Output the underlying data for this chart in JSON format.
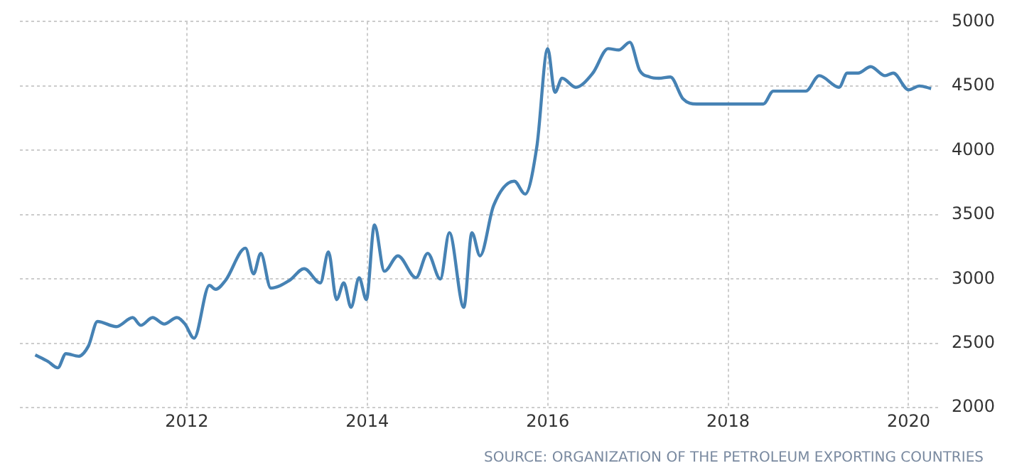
{
  "chart_data": {
    "type": "line",
    "annotations": [
      "SOURCE: ORGANIZATION OF THE PETROLEUM EXPORTING COUNTRIES"
    ],
    "xlim": [
      2010.15,
      2020.35
    ],
    "xticks": [
      2012,
      2014,
      2016,
      2018,
      2020
    ],
    "ylim": [
      2000,
      5000
    ],
    "yticks": [
      2000,
      2500,
      3000,
      3500,
      4000,
      4500,
      5000
    ],
    "grid": true,
    "legend": false,
    "marker": "none",
    "line_style": "solid",
    "series": [
      {
        "color": "#4682b4",
        "x": [
          2010.32,
          2010.46,
          2010.57,
          2010.66,
          2010.8,
          2010.91,
          2011.01,
          2011.22,
          2011.4,
          2011.49,
          2011.62,
          2011.75,
          2011.89,
          2011.98,
          2012.08,
          2012.25,
          2012.32,
          2012.43,
          2012.65,
          2012.74,
          2012.82,
          2012.93,
          2013.14,
          2013.3,
          2013.48,
          2013.57,
          2013.66,
          2013.74,
          2013.82,
          2013.91,
          2013.99,
          2014.08,
          2014.19,
          2014.34,
          2014.54,
          2014.67,
          2014.81,
          2014.91,
          2015.07,
          2015.16,
          2015.25,
          2015.4,
          2015.63,
          2015.75,
          2015.88,
          2016.0,
          2016.08,
          2016.16,
          2016.31,
          2016.5,
          2016.67,
          2016.79,
          2016.91,
          2017.02,
          2017.13,
          2017.23,
          2017.36,
          2017.5,
          2017.65,
          2017.97,
          2018.39,
          2018.5,
          2018.86,
          2019.01,
          2019.23,
          2019.32,
          2019.44,
          2019.58,
          2019.74,
          2019.83,
          2020.0,
          2020.12,
          2020.25
        ],
        "values": [
          2410,
          2360,
          2310,
          2420,
          2400,
          2480,
          2670,
          2630,
          2700,
          2640,
          2700,
          2650,
          2700,
          2650,
          2540,
          2950,
          2920,
          2990,
          3240,
          3040,
          3200,
          2930,
          2990,
          3080,
          2970,
          3210,
          2840,
          2970,
          2780,
          3010,
          2840,
          3420,
          3060,
          3180,
          3010,
          3200,
          3000,
          3360,
          2780,
          3360,
          3180,
          3570,
          3760,
          3660,
          4030,
          4790,
          4450,
          4560,
          4490,
          4600,
          4790,
          4780,
          4840,
          4620,
          4570,
          4560,
          4570,
          4400,
          4360,
          4360,
          4360,
          4460,
          4460,
          4580,
          4490,
          4600,
          4600,
          4650,
          4580,
          4600,
          4470,
          4500,
          4480
        ]
      }
    ]
  }
}
